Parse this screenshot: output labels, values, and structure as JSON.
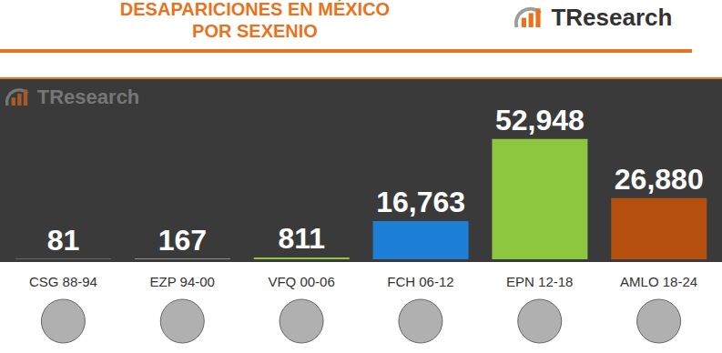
{
  "brand": "TResearch",
  "chart_data": {
    "type": "bar",
    "title": "DESAPARICIONES EN MÉXICO POR SEXENIO",
    "categories": [
      "CSG 88-94",
      "EZP 94-00",
      "VFQ 00-06",
      "FCH 06-12",
      "EPN 12-18",
      "AMLO 18-24"
    ],
    "values": [
      81,
      167,
      811,
      16763,
      52948,
      26880
    ],
    "value_labels": [
      "81",
      "167",
      "811",
      "16,763",
      "52,948",
      "26,880"
    ],
    "colors": [
      "#e0e0e0",
      "#e0e0e0",
      "#8dc63f",
      "#1e7fd6",
      "#8dc63f",
      "#b5500e"
    ],
    "ylim": [
      0,
      80000
    ],
    "data_labels": true,
    "tick_labels": "x",
    "grid": false
  }
}
